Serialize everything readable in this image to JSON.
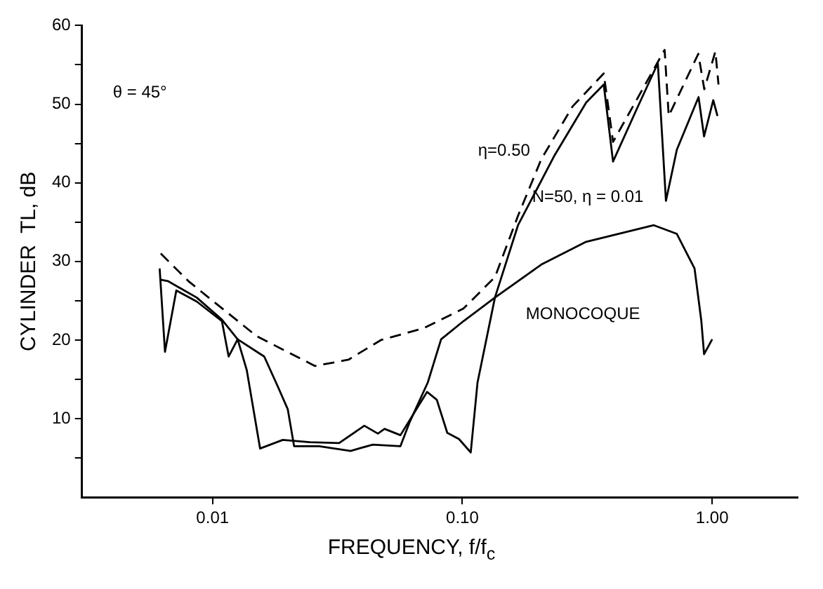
{
  "chart_data": {
    "type": "line",
    "xlabel": "FREQUENCY, f/f$_{c}$",
    "ylabel": "CYLINDER  TL, dB",
    "log": "x",
    "grid": false,
    "legend": false,
    "marker": "none",
    "xlim": [
      0.003,
      2.2
    ],
    "xticks": [
      {
        "value": 0.01,
        "label": "0.01"
      },
      {
        "value": 0.1,
        "label": "0.10"
      },
      {
        "value": 1,
        "label": "1.00"
      }
    ],
    "ylim": [
      0,
      60
    ],
    "yticks": [
      {
        "value": 5,
        "label": null
      },
      10,
      {
        "value": 15,
        "label": null
      },
      20,
      {
        "value": 25,
        "label": null
      },
      30,
      {
        "value": 35,
        "label": null
      },
      40,
      {
        "value": 45,
        "label": null
      },
      50,
      {
        "value": 55,
        "label": null
      },
      60
    ],
    "series": [
      {
        "name": "η=0.50",
        "color": "#000000",
        "line_style": "dashed",
        "x": [
          0.0062,
          0.008,
          0.01,
          0.015,
          0.0257,
          0.035,
          0.0472,
          0.07,
          0.101,
          0.135,
          0.167,
          0.207,
          0.276,
          0.368,
          0.401,
          0.645,
          0.67,
          0.88,
          0.93,
          1.03,
          1.06
        ],
        "values": [
          31,
          27.5,
          25,
          20.5,
          16.7,
          17.5,
          20,
          21.5,
          24,
          28,
          35.8,
          43,
          49.7,
          53.9,
          45.2,
          56.9,
          48.5,
          56.4,
          51.9,
          56.7,
          52.5
        ]
      },
      {
        "name": "N=50, η = 0.01",
        "color": "#000000",
        "line_style": "solid",
        "x": [
          0.00614,
          0.00645,
          0.00716,
          0.00864,
          0.0109,
          0.0116,
          0.0126,
          0.0137,
          0.0155,
          0.0191,
          0.0245,
          0.0321,
          0.0405,
          0.0459,
          0.0488,
          0.0565,
          0.0722,
          0.079,
          0.087,
          0.097,
          0.108,
          0.115,
          0.135,
          0.167,
          0.234,
          0.313,
          0.368,
          0.401,
          0.496,
          0.606,
          0.653,
          0.722,
          0.882,
          0.928,
          1.01,
          1.05
        ],
        "values": [
          29.1,
          18.5,
          26.3,
          24.9,
          22.4,
          17.9,
          20.1,
          16.2,
          6.2,
          7.3,
          7.0,
          6.9,
          9.1,
          8.1,
          8.7,
          7.9,
          13.4,
          12.4,
          8.2,
          7.4,
          5.7,
          14.6,
          25.4,
          34.6,
          43.5,
          50.2,
          52.5,
          42.7,
          49.2,
          55.2,
          37.7,
          44.2,
          50.9,
          45.9,
          50.5,
          48.5
        ]
      },
      {
        "name": "MONOCOQUE",
        "color": "#000000",
        "line_style": "solid",
        "x": [
          0.00614,
          0.00662,
          0.00864,
          0.0109,
          0.0126,
          0.0161,
          0.0183,
          0.02,
          0.0212,
          0.0267,
          0.0357,
          0.0438,
          0.0565,
          0.0614,
          0.0727,
          0.0822,
          0.101,
          0.135,
          0.207,
          0.313,
          0.584,
          0.722,
          0.85,
          0.905,
          0.928,
          1.0
        ],
        "values": [
          27.7,
          27.5,
          25.4,
          22.6,
          20.1,
          17.9,
          14.0,
          11.2,
          6.5,
          6.5,
          5.9,
          6.7,
          6.5,
          9.5,
          14.6,
          20.1,
          22.4,
          25.4,
          29.6,
          32.5,
          34.6,
          33.5,
          29.1,
          22.4,
          18.2,
          20.1
        ]
      }
    ],
    "annotations": [
      "θ = 45°"
    ]
  }
}
